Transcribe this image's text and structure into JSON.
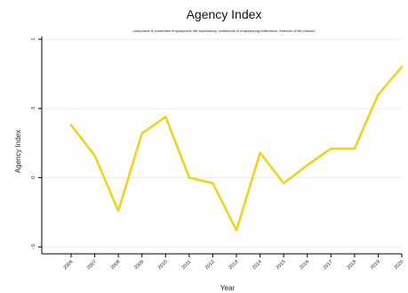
{
  "chart_data": {
    "type": "line",
    "title": "Agency Index",
    "subtitle": "composed of vulnerable employment, life expectancy, confidence in empowering institutions, freedom of life choices",
    "xlabel": "Year",
    "ylabel": "Agency Index",
    "x": [
      "2006",
      "2007",
      "2008",
      "2009",
      "2010",
      "2011",
      "2012",
      "2013",
      "2014",
      "2015",
      "2016",
      "2017",
      "2018",
      "2019",
      "2020"
    ],
    "series": [
      {
        "values": [
          0.38,
          0.16,
          -0.24,
          0.32,
          0.44,
          0.0,
          -0.04,
          -0.38,
          0.18,
          -0.04,
          0.09,
          0.21,
          0.21,
          0.6,
          0.8
        ]
      }
    ],
    "yticks": [
      -0.5,
      0,
      0.5,
      1
    ],
    "ytick_labels": [
      "-.5",
      "0",
      ".5",
      "1"
    ],
    "ylim": [
      -0.55,
      1.02
    ],
    "grid": true,
    "legend": "none",
    "line_color": "#f2d21c"
  }
}
